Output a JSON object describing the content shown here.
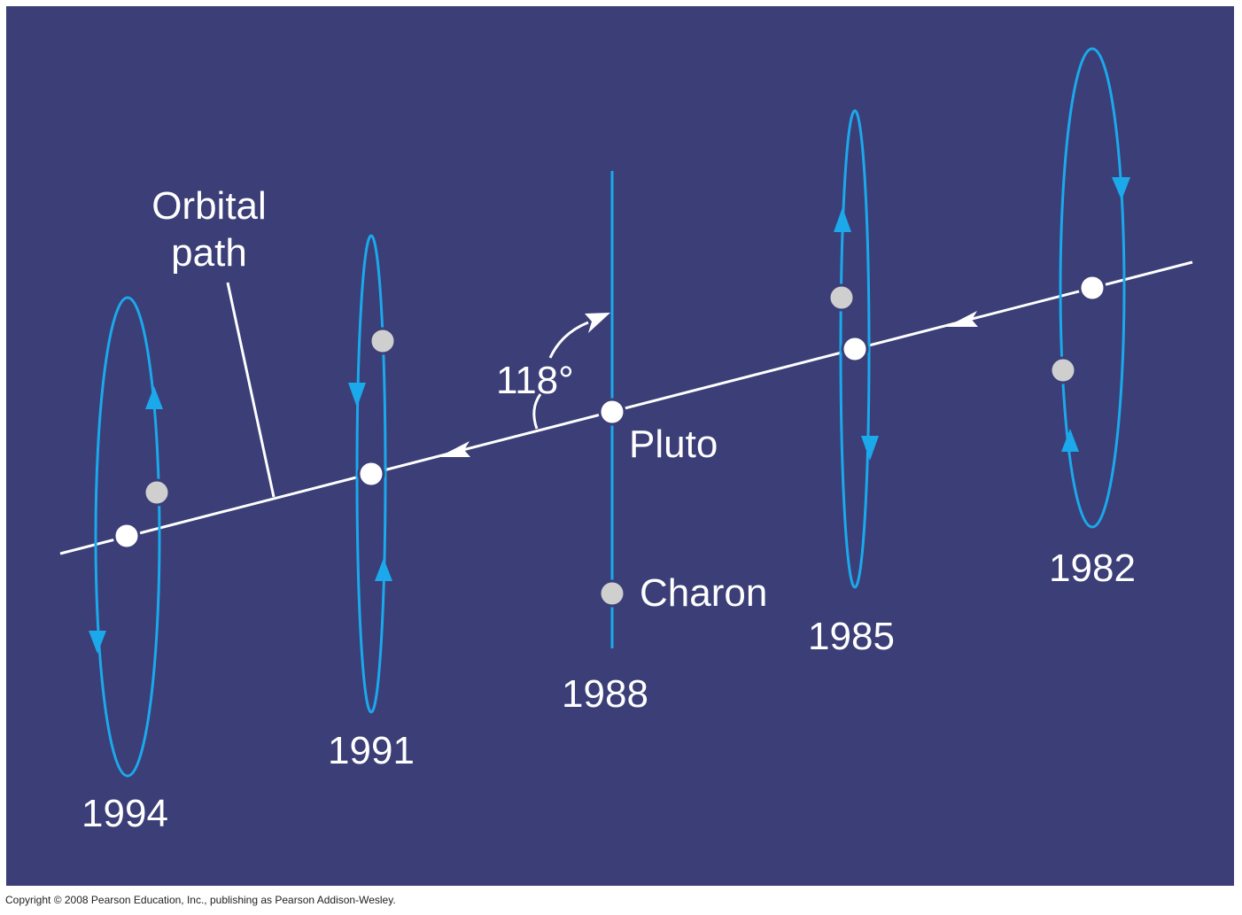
{
  "colors": {
    "background": "#3b3e77",
    "orbit": "#1ba9ec",
    "path": "#ffffff",
    "pluto": "#ffffff",
    "charon": "#cfcfcf"
  },
  "labels": {
    "orbital_path": [
      "Orbital",
      "path"
    ],
    "angle": "118°",
    "pluto": "Pluto",
    "charon": "Charon"
  },
  "years": [
    {
      "year": "1994"
    },
    {
      "year": "1991"
    },
    {
      "year": "1988"
    },
    {
      "year": "1985"
    },
    {
      "year": "1982"
    }
  ],
  "copyright": "Copyright © 2008 Pearson Education, Inc., publishing as Pearson Addison-Wesley."
}
